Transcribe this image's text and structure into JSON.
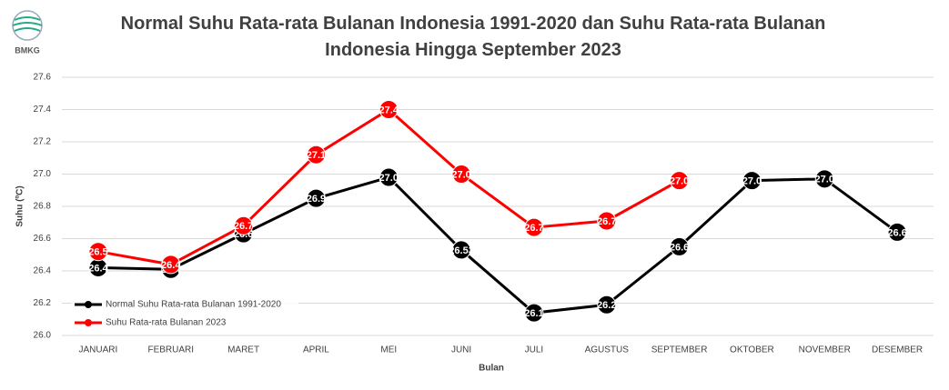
{
  "logo_text": "BMKG",
  "chart_data": {
    "type": "line",
    "title": "Normal Suhu Rata-rata Bulanan Indonesia 1991-2020 dan Suhu Rata-rata Bulanan Indonesia Hingga September 2023",
    "x_label": "Bulan",
    "y_label": "Suhu (ºC)",
    "categories": [
      "JANUARI",
      "FEBRUARI",
      "MARET",
      "APRIL",
      "MEI",
      "JUNI",
      "JULI",
      "AGUSTUS",
      "SEPTEMBER",
      "OKTOBER",
      "NOVEMBER",
      "DESEMBER"
    ],
    "series": [
      {
        "name": "Normal Suhu Rata-rata Bulanan 1991-2020",
        "color": "#000000",
        "values": [
          26.42,
          26.41,
          26.63,
          26.85,
          26.98,
          26.53,
          26.14,
          26.19,
          26.55,
          26.96,
          26.97,
          26.64
        ],
        "value_labels": [
          "26.4",
          "26.4",
          "26.6",
          "26.9",
          "27.0",
          "26.53",
          "26.1",
          "26.2",
          "26.6",
          "27.0",
          "27.0",
          "26.6"
        ]
      },
      {
        "name": "Suhu Rata-rata Bulanan 2023",
        "color": "#ff0000",
        "values": [
          26.52,
          26.44,
          26.68,
          27.12,
          27.4,
          27.0,
          26.67,
          26.71,
          26.96,
          null,
          null,
          null
        ],
        "value_labels": [
          "26.5",
          "26.4",
          "26.7",
          "27.1",
          "27.4",
          "27.0",
          "26.7",
          "26.7",
          "27.0",
          null,
          null,
          null
        ]
      }
    ],
    "ylim": [
      26.0,
      27.6
    ],
    "yticks": [
      {
        "value": 26.0,
        "label": "26.0"
      },
      26.2,
      26.4,
      26.6,
      26.8,
      {
        "value": 27.0,
        "label": "27.0"
      },
      27.2,
      27.4,
      27.6
    ],
    "grid": true,
    "legend": "bottom-left"
  }
}
